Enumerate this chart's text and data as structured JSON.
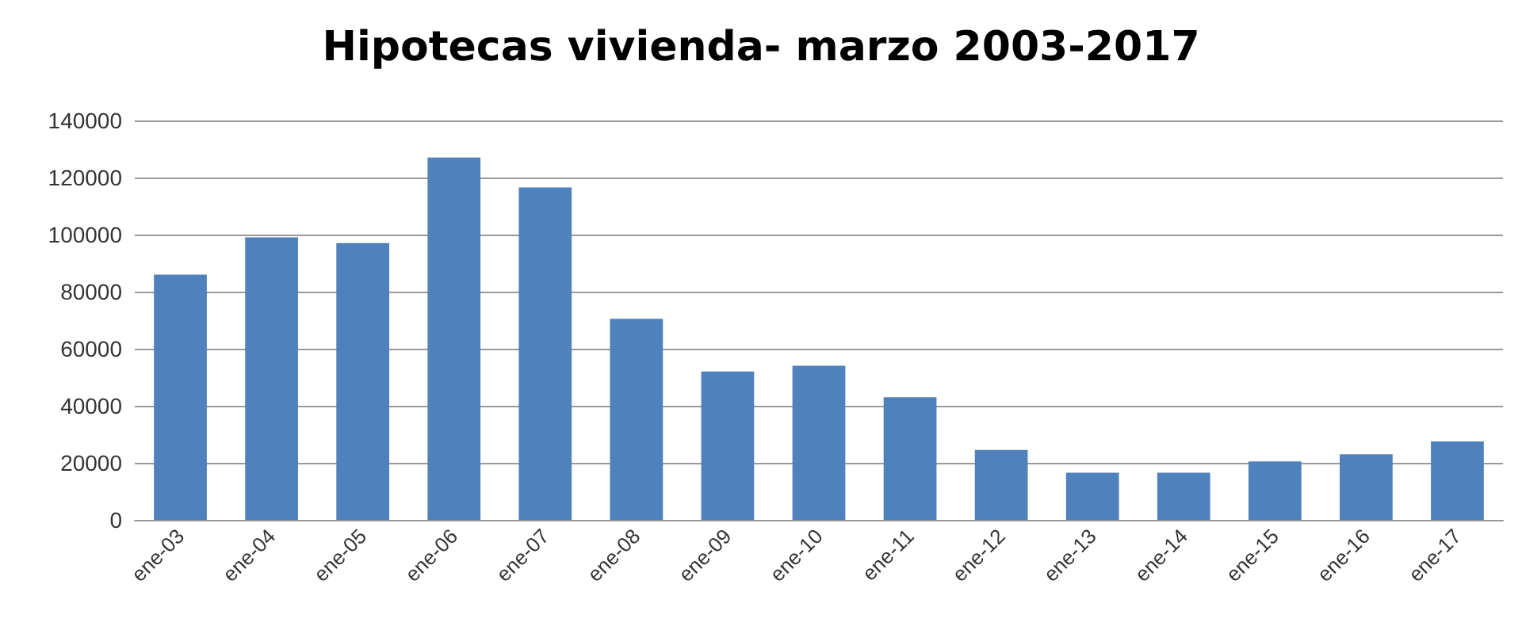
{
  "chart_data": {
    "type": "bar",
    "title": "Hipotecas vivienda- marzo 2003-2017",
    "categories": [
      "ene-03",
      "ene-04",
      "ene-05",
      "ene-06",
      "ene-07",
      "ene-08",
      "ene-09",
      "ene-10",
      "ene-11",
      "ene-12",
      "ene-13",
      "ene-14",
      "ene-15",
      "ene-16",
      "ene-17"
    ],
    "values": [
      86000,
      99000,
      97000,
      127000,
      116500,
      70500,
      52000,
      54000,
      43000,
      24500,
      16500,
      16500,
      20500,
      23000,
      27500
    ],
    "color": "#4f81bd",
    "ylim": [
      0,
      140000
    ],
    "yticks": [
      0,
      20000,
      40000,
      60000,
      80000,
      100000,
      120000,
      140000
    ],
    "grid": "y"
  }
}
